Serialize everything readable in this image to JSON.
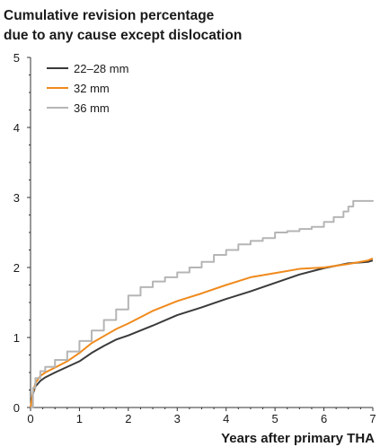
{
  "chart_data": {
    "type": "line",
    "title_lines": [
      "Cumulative revision percentage",
      "due to any cause except dislocation"
    ],
    "xlabel": "Years after primary THA",
    "ylabel": "",
    "xlim": [
      0,
      7
    ],
    "ylim": [
      0,
      5
    ],
    "x_ticks": [
      0,
      1,
      2,
      3,
      4,
      5,
      6,
      7
    ],
    "y_ticks": [
      0,
      1,
      2,
      3,
      4,
      5
    ],
    "grid": false,
    "legend_position": "top-left",
    "series": [
      {
        "name": "22–28 mm",
        "color": "#3a3a3a",
        "step": false,
        "x": [
          0,
          0.05,
          0.1,
          0.2,
          0.3,
          0.5,
          0.75,
          1.0,
          1.25,
          1.5,
          1.75,
          2.0,
          2.5,
          3.0,
          3.5,
          4.0,
          4.5,
          5.0,
          5.5,
          6.0,
          6.5,
          6.9,
          7.0
        ],
        "values": [
          0,
          0.2,
          0.3,
          0.38,
          0.43,
          0.5,
          0.58,
          0.66,
          0.78,
          0.88,
          0.97,
          1.03,
          1.17,
          1.32,
          1.43,
          1.55,
          1.66,
          1.78,
          1.9,
          1.99,
          2.06,
          2.08,
          2.1
        ]
      },
      {
        "name": "32 mm",
        "color": "#f08a1c",
        "step": false,
        "x": [
          0,
          0.05,
          0.1,
          0.2,
          0.3,
          0.5,
          0.75,
          1.0,
          1.25,
          1.5,
          1.75,
          2.0,
          2.5,
          3.0,
          3.5,
          4.0,
          4.5,
          5.0,
          5.5,
          6.0,
          6.5,
          6.9,
          7.0
        ],
        "values": [
          0,
          0.22,
          0.35,
          0.45,
          0.5,
          0.57,
          0.66,
          0.78,
          0.92,
          1.02,
          1.12,
          1.2,
          1.38,
          1.52,
          1.63,
          1.75,
          1.86,
          1.92,
          1.98,
          2.0,
          2.05,
          2.1,
          2.13
        ]
      },
      {
        "name": "36 mm",
        "color": "#b5b5b5",
        "step": true,
        "x": [
          0,
          0.05,
          0.1,
          0.2,
          0.3,
          0.5,
          0.75,
          1.0,
          1.25,
          1.5,
          1.75,
          2.0,
          2.25,
          2.5,
          2.75,
          3.0,
          3.25,
          3.5,
          3.75,
          4.0,
          4.25,
          4.5,
          4.75,
          5.0,
          5.25,
          5.5,
          5.75,
          6.0,
          6.2,
          6.4,
          6.5,
          6.6,
          7.0
        ],
        "values": [
          0,
          0.28,
          0.42,
          0.52,
          0.58,
          0.68,
          0.8,
          0.95,
          1.1,
          1.25,
          1.4,
          1.6,
          1.72,
          1.8,
          1.86,
          1.93,
          2.0,
          2.08,
          2.18,
          2.25,
          2.33,
          2.38,
          2.42,
          2.5,
          2.52,
          2.55,
          2.58,
          2.65,
          2.72,
          2.8,
          2.87,
          2.95,
          2.96
        ]
      }
    ]
  }
}
